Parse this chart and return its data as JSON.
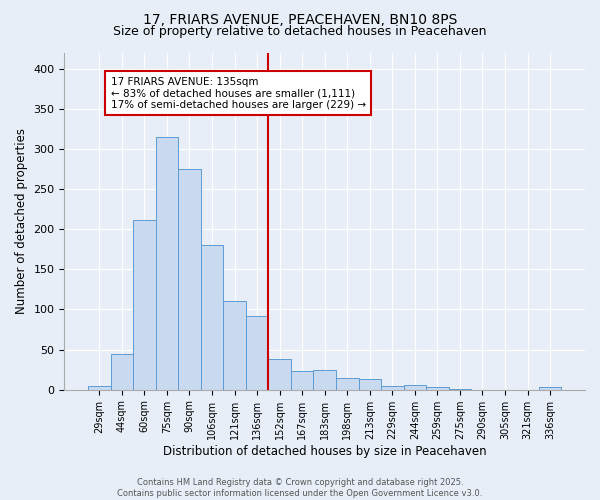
{
  "title": "17, FRIARS AVENUE, PEACEHAVEN, BN10 8PS",
  "subtitle": "Size of property relative to detached houses in Peacehaven",
  "xlabel": "Distribution of detached houses by size in Peacehaven",
  "ylabel": "Number of detached properties",
  "bar_labels": [
    "29sqm",
    "44sqm",
    "60sqm",
    "75sqm",
    "90sqm",
    "106sqm",
    "121sqm",
    "136sqm",
    "152sqm",
    "167sqm",
    "183sqm",
    "198sqm",
    "213sqm",
    "229sqm",
    "244sqm",
    "259sqm",
    "275sqm",
    "290sqm",
    "305sqm",
    "321sqm",
    "336sqm"
  ],
  "bar_values": [
    5,
    44,
    212,
    315,
    275,
    180,
    110,
    92,
    38,
    23,
    24,
    15,
    13,
    5,
    6,
    3,
    1,
    0,
    0,
    0,
    4
  ],
  "bar_color": "#c9d9f0",
  "bar_edge_color": "#5b9bd5",
  "vline_x_index": 7.5,
  "vline_color": "#cc0000",
  "annotation_text": "17 FRIARS AVENUE: 135sqm\n← 83% of detached houses are smaller (1,111)\n17% of semi-detached houses are larger (229) →",
  "annotation_box_color": "#ffffff",
  "annotation_box_edge": "#cc0000",
  "ylim": [
    0,
    420
  ],
  "background_color": "#e8eef8",
  "plot_bg_color": "#e8eef8",
  "footer_text": "Contains HM Land Registry data © Crown copyright and database right 2025.\nContains public sector information licensed under the Open Government Licence v3.0.",
  "title_fontsize": 10,
  "subtitle_fontsize": 9,
  "xlabel_fontsize": 8.5,
  "ylabel_fontsize": 8.5,
  "tick_fontsize": 7,
  "footer_fontsize": 6,
  "annotation_fontsize": 7.5
}
